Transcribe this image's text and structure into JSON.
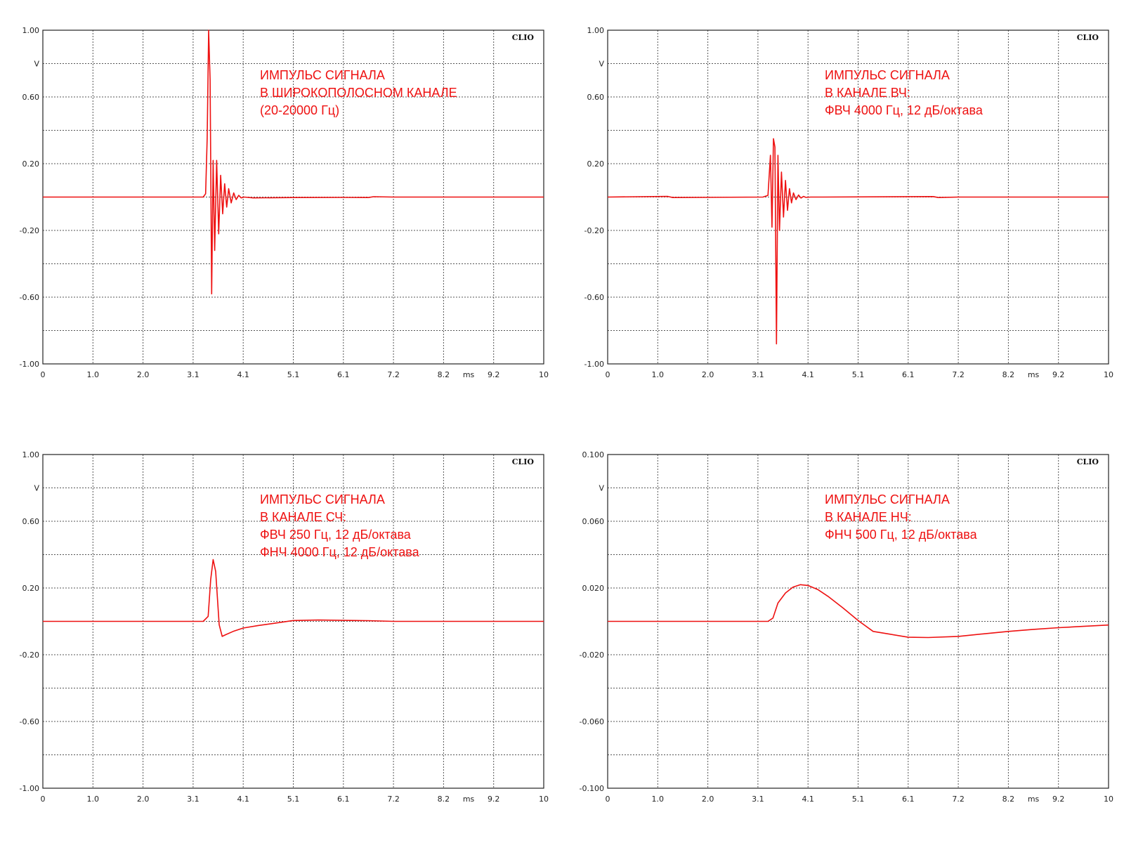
{
  "colors": {
    "trace": "#ee1111",
    "grid": "#555555",
    "frame": "#222222",
    "annotation": "#ee1111"
  },
  "chart_data": [
    {
      "type": "line",
      "brand": "CLIO",
      "annotation": [
        "ИМПУЛЬС СИГНАЛА",
        "В ШИРОКОПОЛОСНОМ КАНАЛЕ",
        "(20-20000 Гц)"
      ],
      "xlim": [
        0,
        10
      ],
      "ylim": [
        -1,
        1
      ],
      "x_ticks": [
        "0",
        "1.0",
        "2.0",
        "3.1",
        "4.1",
        "5.1",
        "6.1",
        "7.2",
        "8.2",
        "9.2",
        "10"
      ],
      "x_unit": "ms",
      "y_ticks": [
        "1.00",
        "V",
        "0.60",
        "",
        "0.20",
        "",
        "-0.20",
        "",
        "-0.60",
        "",
        "-1.00"
      ],
      "series": [
        {
          "x": [
            0,
            3.1,
            3.2,
            3.25,
            3.28,
            3.31,
            3.34,
            3.37,
            3.4,
            3.43,
            3.47,
            3.51,
            3.55,
            3.59,
            3.63,
            3.67,
            3.71,
            3.76,
            3.81,
            3.86,
            3.91,
            3.96,
            4.02,
            4.2,
            5.0,
            6.0,
            6.5,
            6.6,
            7.0,
            10
          ],
          "y": [
            0,
            0,
            0,
            0.02,
            0.35,
            1.0,
            0.7,
            -0.58,
            0.22,
            -0.32,
            0.22,
            -0.22,
            0.13,
            -0.1,
            0.08,
            -0.06,
            0.05,
            -0.035,
            0.025,
            -0.015,
            0.01,
            -0.005,
            0,
            -0.005,
            -0.003,
            -0.002,
            -0.003,
            0.002,
            0,
            0
          ]
        }
      ]
    },
    {
      "type": "line",
      "brand": "CLIO",
      "annotation": [
        "ИМПУЛЬС СИГНАЛА",
        "В КАНАЛЕ ВЧ:",
        "ФВЧ 4000 Гц, 12 дБ/октава"
      ],
      "xlim": [
        0,
        10
      ],
      "ylim": [
        -1,
        1
      ],
      "x_ticks": [
        "0",
        "1.0",
        "2.0",
        "3.1",
        "4.1",
        "5.1",
        "6.1",
        "7.2",
        "8.2",
        "9.2",
        "10"
      ],
      "x_unit": "ms",
      "y_ticks": [
        "1.00",
        "V",
        "0.60",
        "",
        "0.20",
        "",
        "-0.20",
        "",
        "-0.60",
        "",
        "-1.00"
      ],
      "series": [
        {
          "x": [
            0,
            1.2,
            1.3,
            3.1,
            3.2,
            3.25,
            3.28,
            3.31,
            3.34,
            3.37,
            3.4,
            3.43,
            3.47,
            3.51,
            3.55,
            3.59,
            3.63,
            3.67,
            3.71,
            3.76,
            3.81,
            3.86,
            3.91,
            3.96,
            4.05,
            4.3,
            6.5,
            6.6,
            7.0,
            10
          ],
          "y": [
            0,
            0.004,
            -0.003,
            0,
            0.01,
            0.25,
            -0.18,
            0.35,
            0.3,
            -0.88,
            0.25,
            -0.2,
            0.15,
            -0.12,
            0.1,
            -0.08,
            0.05,
            -0.035,
            0.025,
            -0.015,
            0.012,
            -0.006,
            0.004,
            -0.002,
            0,
            0,
            0.003,
            -0.003,
            0,
            0
          ]
        }
      ]
    },
    {
      "type": "line",
      "brand": "CLIO",
      "annotation": [
        "ИМПУЛЬС СИГНАЛА",
        "В КАНАЛЕ СЧ:",
        "ФВЧ 250 Гц, 12 дБ/октава",
        "ФНЧ 4000 Гц, 12 дБ/октава"
      ],
      "xlim": [
        0,
        10
      ],
      "ylim": [
        -1,
        1
      ],
      "x_ticks": [
        "0",
        "1.0",
        "2.0",
        "3.1",
        "4.1",
        "5.1",
        "6.1",
        "7.2",
        "8.2",
        "9.2",
        "10"
      ],
      "x_unit": "ms",
      "y_ticks": [
        "1.00",
        "V",
        "0.60",
        "",
        "0.20",
        "",
        "-0.20",
        "",
        "-0.60",
        "",
        "-1.00"
      ],
      "series": [
        {
          "x": [
            0,
            3.2,
            3.3,
            3.35,
            3.4,
            3.45,
            3.52,
            3.58,
            3.65,
            3.8,
            4.0,
            4.3,
            4.6,
            5.0,
            5.5,
            6.0,
            6.5,
            7.0,
            8.0,
            10
          ],
          "y": [
            0,
            0,
            0.03,
            0.25,
            0.37,
            0.3,
            -0.02,
            -0.09,
            -0.08,
            -0.06,
            -0.04,
            -0.025,
            -0.012,
            0.005,
            0.008,
            0.006,
            0.004,
            0,
            0,
            0
          ]
        }
      ]
    },
    {
      "type": "line",
      "brand": "CLIO",
      "annotation": [
        "ИМПУЛЬС СИГНАЛА",
        "В КАНАЛЕ НЧ:",
        "ФНЧ 500 Гц, 12 дБ/октава"
      ],
      "xlim": [
        0,
        10
      ],
      "ylim": [
        -0.1,
        0.1
      ],
      "x_ticks": [
        "0",
        "1.0",
        "2.0",
        "3.1",
        "4.1",
        "5.1",
        "6.1",
        "7.2",
        "8.2",
        "9.2",
        "10"
      ],
      "x_unit": "ms",
      "y_ticks": [
        "0.100",
        "V",
        "0.060",
        "",
        "0.020",
        "",
        "-0.020",
        "",
        "-0.060",
        "",
        "-0.100"
      ],
      "series": [
        {
          "x": [
            0,
            3.2,
            3.3,
            3.4,
            3.55,
            3.7,
            3.85,
            4.0,
            4.2,
            4.4,
            4.7,
            5.0,
            5.3,
            5.6,
            6.0,
            6.4,
            7.0,
            7.5,
            8.0,
            8.5,
            9.0,
            9.5,
            10
          ],
          "y": [
            0,
            0,
            0.002,
            0.011,
            0.017,
            0.0205,
            0.022,
            0.0215,
            0.019,
            0.015,
            0.008,
            0.0005,
            -0.006,
            -0.0075,
            -0.0095,
            -0.0097,
            -0.009,
            -0.0075,
            -0.006,
            -0.0048,
            -0.0038,
            -0.003,
            -0.0022
          ]
        }
      ]
    }
  ]
}
